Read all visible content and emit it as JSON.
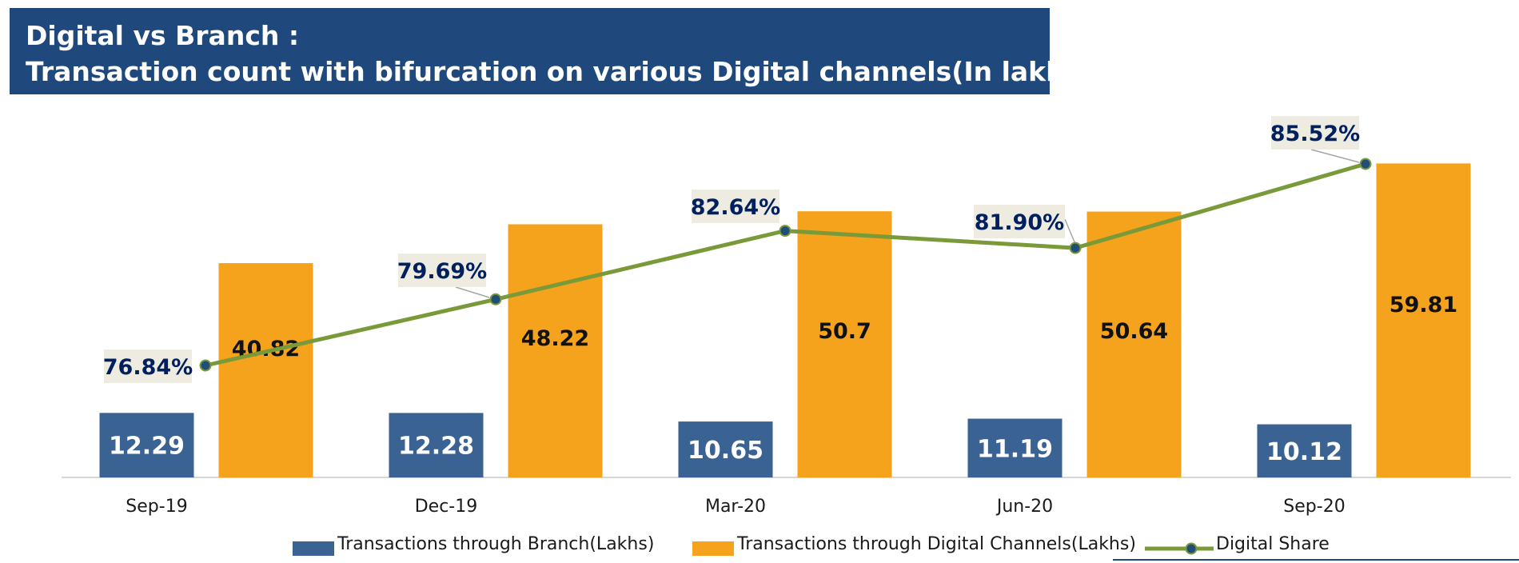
{
  "title": {
    "line1": "Digital vs Branch :",
    "line2": "Transaction count with bifurcation on various Digital channels(In lakhs)"
  },
  "chart_data": {
    "type": "bar",
    "categories": [
      "Sep-19",
      "Dec-19",
      "Mar-20",
      "Jun-20",
      "Sep-20"
    ],
    "series": [
      {
        "name": "Transactions through Branch(Lakhs)",
        "values": [
          12.29,
          12.28,
          10.65,
          11.19,
          10.12
        ],
        "labels": [
          "12.29",
          "12.28",
          "10.65",
          "11.19",
          "10.12"
        ],
        "color": "#3a6293"
      },
      {
        "name": "Transactions through Digital Channels(Lakhs)",
        "values": [
          40.82,
          48.22,
          50.7,
          50.64,
          59.81
        ],
        "labels": [
          "40.82",
          "48.22",
          "50.7",
          "50.64",
          "59.81"
        ],
        "color": "#f5a31c"
      }
    ],
    "line_series": {
      "name": "Digital Share",
      "type": "line",
      "values": [
        76.84,
        79.69,
        82.64,
        81.9,
        85.52
      ],
      "labels": [
        "76.84%",
        "79.69%",
        "82.64%",
        "81.90%",
        "85.52%"
      ],
      "color": "#7a9a3a",
      "marker_color": "#1f4e79"
    },
    "ylim": [
      0,
      65
    ],
    "line_ylim": [
      70,
      87.4
    ],
    "legend_position": "bottom",
    "grid": false
  }
}
